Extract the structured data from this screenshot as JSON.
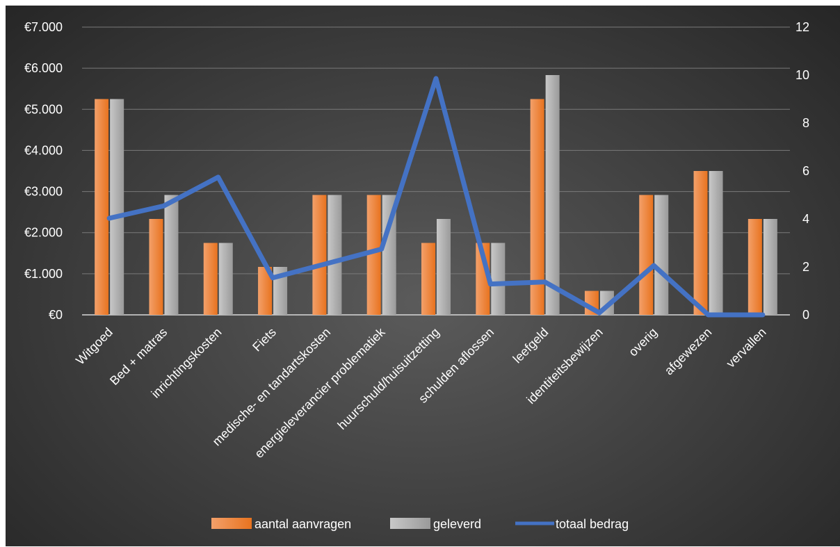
{
  "chart_data": {
    "type": "bar",
    "categories": [
      "Witgoed",
      "Bed + matras",
      "inrichtingskosten",
      "Fiets",
      "medische- en tandartskosten",
      "energieleverancier problematiek",
      "huurschuld/huisuitzetting",
      "schulden aflossen",
      "leefgeld",
      "identiteitsbewijzen",
      "overig",
      "afgewezen",
      "vervallen"
    ],
    "series": [
      {
        "name": "aantal aanvragen",
        "type": "bar",
        "axis": "right",
        "color": "#ed7d31",
        "values": [
          9,
          4,
          3,
          2,
          5,
          5,
          3,
          3,
          9,
          1,
          5,
          6,
          4
        ]
      },
      {
        "name": "geleverd",
        "type": "bar",
        "axis": "right",
        "color": "#a5a5a5",
        "values": [
          9,
          5,
          3,
          2,
          5,
          5,
          4,
          3,
          10,
          1,
          5,
          6,
          4
        ]
      },
      {
        "name": "totaal bedrag",
        "type": "line",
        "axis": "left",
        "color": "#4472c4",
        "values": [
          2350,
          2650,
          3350,
          900,
          1250,
          1600,
          5750,
          750,
          800,
          50,
          1200,
          0,
          0
        ]
      }
    ],
    "y_left": {
      "ticks": [
        "€7.000",
        "€6.000",
        "€5.000",
        "€4.000",
        "€3.000",
        "€2.000",
        "€1.000",
        "€0"
      ],
      "ylim": [
        0,
        7000
      ]
    },
    "y_right": {
      "ticks": [
        "12",
        "10",
        "8",
        "6",
        "4",
        "2",
        "0"
      ],
      "ylim": [
        0,
        12
      ]
    },
    "legend_position": "bottom",
    "grid": true
  }
}
